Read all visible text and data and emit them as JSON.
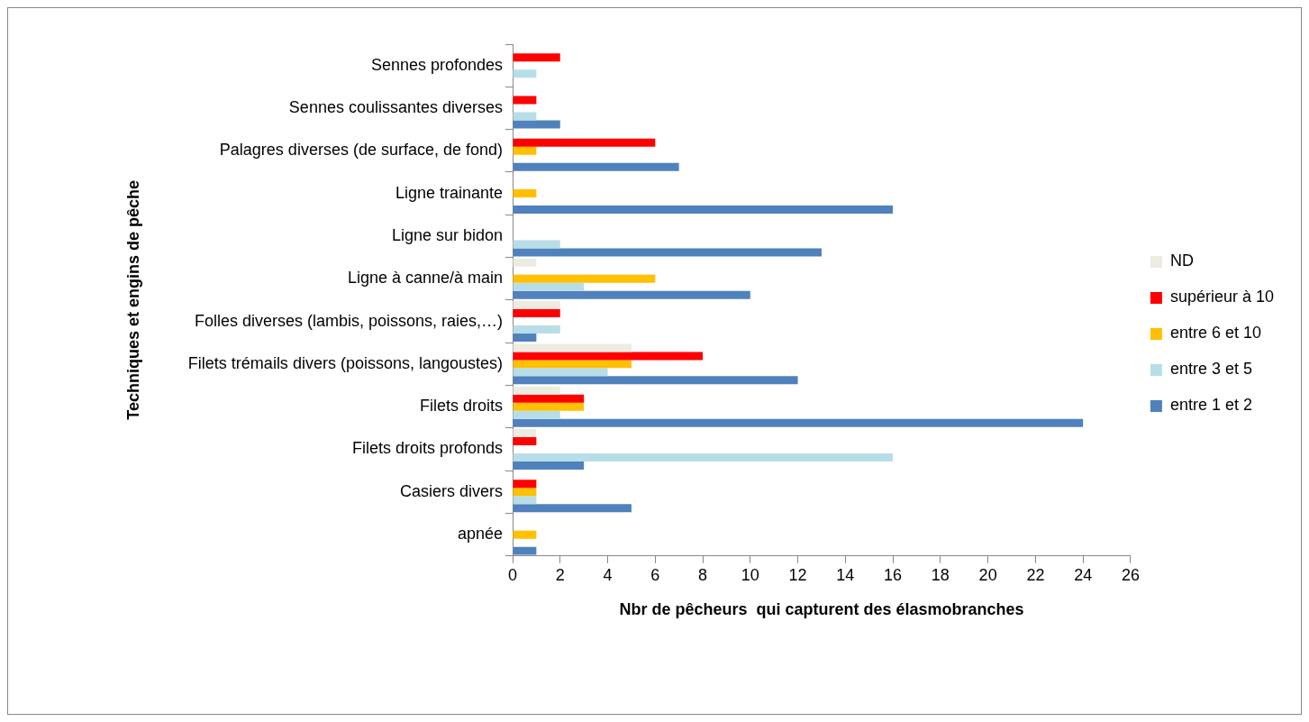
{
  "chart_data": {
    "type": "bar",
    "orientation": "horizontal",
    "xlabel": "Nbr de pêcheurs  qui capturent des élasmobranches",
    "ylabel": "Techniques et engins de pêche",
    "categories": [
      "Sennes profondes",
      "Sennes coulissantes diverses",
      "Palagres diverses (de surface, de fond)",
      "Ligne trainante",
      "Ligne sur bidon",
      "Ligne à canne/à main",
      "Folles diverses (lambis, poissons, raies,…)",
      "Filets trémails divers (poissons, langoustes)",
      "Filets droits",
      "Filets droits profonds",
      "Casiers divers",
      "apnée"
    ],
    "series": [
      {
        "name": "ND",
        "color": "#eeece1",
        "values": [
          null,
          null,
          null,
          null,
          null,
          1,
          2,
          5,
          2,
          1,
          null,
          null
        ]
      },
      {
        "name": "supérieur à 10",
        "color": "#ff0000",
        "values": [
          2,
          1,
          6,
          null,
          null,
          null,
          2,
          8,
          3,
          1,
          1,
          null
        ]
      },
      {
        "name": "entre 6 et 10",
        "color": "#ffc000",
        "values": [
          null,
          null,
          1,
          1,
          null,
          6,
          null,
          5,
          3,
          null,
          1,
          1
        ]
      },
      {
        "name": "entre 3 et 5",
        "color": "#b7dee8",
        "values": [
          1,
          1,
          null,
          null,
          2,
          3,
          2,
          4,
          2,
          16,
          1,
          null
        ]
      },
      {
        "name": "entre 1 et 2",
        "color": "#4f81bd",
        "values": [
          null,
          2,
          7,
          16,
          13,
          10,
          1,
          12,
          24,
          3,
          5,
          1
        ]
      }
    ],
    "xlim": [
      0,
      26
    ],
    "xticks": [
      0,
      2,
      4,
      6,
      8,
      10,
      12,
      14,
      16,
      18,
      20,
      22,
      24,
      26
    ],
    "grid": false,
    "legend": "right"
  }
}
